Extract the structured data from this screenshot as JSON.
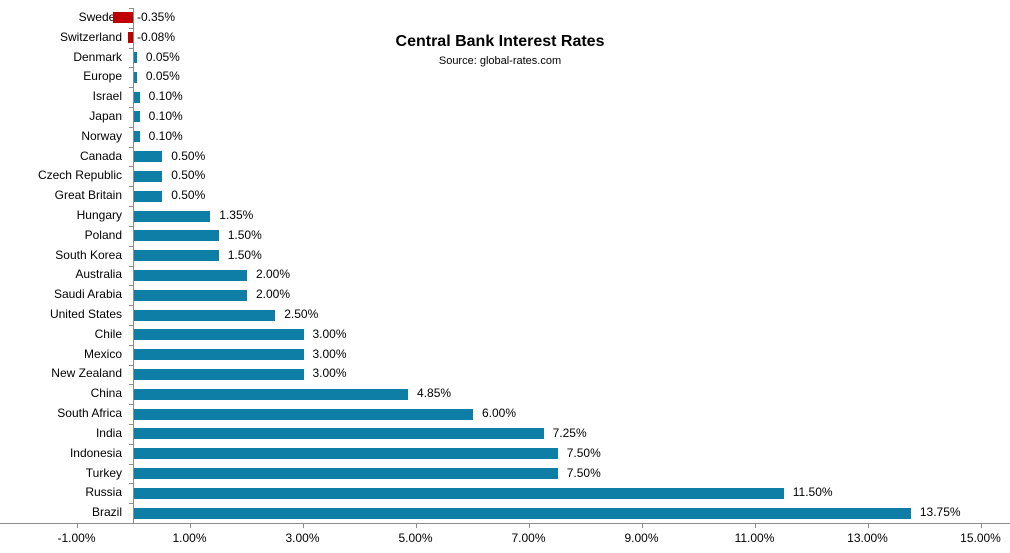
{
  "chart_data": {
    "type": "bar",
    "orientation": "horizontal",
    "title": "Central Bank Interest Rates",
    "subtitle": "Source: global-rates.com",
    "categories": [
      "Sweden",
      "Switzerland",
      "Denmark",
      "Europe",
      "Israel",
      "Japan",
      "Norway",
      "Canada",
      "Czech Republic",
      "Great Britain",
      "Hungary",
      "Poland",
      "South Korea",
      "Australia",
      "Saudi Arabia",
      "United States",
      "Chile",
      "Mexico",
      "New Zealand",
      "China",
      "South Africa",
      "India",
      "Indonesia",
      "Turkey",
      "Russia",
      "Brazil"
    ],
    "values": [
      -0.35,
      -0.08,
      0.05,
      0.05,
      0.1,
      0.1,
      0.1,
      0.5,
      0.5,
      0.5,
      1.35,
      1.5,
      1.5,
      2.0,
      2.0,
      2.5,
      3.0,
      3.0,
      3.0,
      4.85,
      6.0,
      7.25,
      7.5,
      7.5,
      11.5,
      13.75
    ],
    "value_labels": [
      "-0.35%",
      "-0.08%",
      "0.05%",
      "0.05%",
      "0.10%",
      "0.10%",
      "0.10%",
      "0.50%",
      "0.50%",
      "0.50%",
      "1.35%",
      "1.50%",
      "1.50%",
      "2.00%",
      "2.00%",
      "2.50%",
      "3.00%",
      "3.00%",
      "3.00%",
      "4.85%",
      "6.00%",
      "7.25%",
      "7.50%",
      "7.50%",
      "11.50%",
      "13.75%"
    ],
    "x_ticks": [
      {
        "value": -1,
        "label": "-1.00%"
      },
      {
        "value": 1,
        "label": "1.00%"
      },
      {
        "value": 3,
        "label": "3.00%"
      },
      {
        "value": 5,
        "label": "5.00%"
      },
      {
        "value": 7,
        "label": "7.00%"
      },
      {
        "value": 9,
        "label": "9.00%"
      },
      {
        "value": 11,
        "label": "11.00%"
      },
      {
        "value": 13,
        "label": "13.00%"
      },
      {
        "value": 15,
        "label": "15.00%"
      }
    ],
    "xlim": [
      -2,
      15
    ],
    "bar_color": "#0e7ea6",
    "negative_color": "#c00000",
    "axis_color": "#8c8c8c",
    "text_color": "#000000",
    "grid": false,
    "legend_position": "none"
  }
}
